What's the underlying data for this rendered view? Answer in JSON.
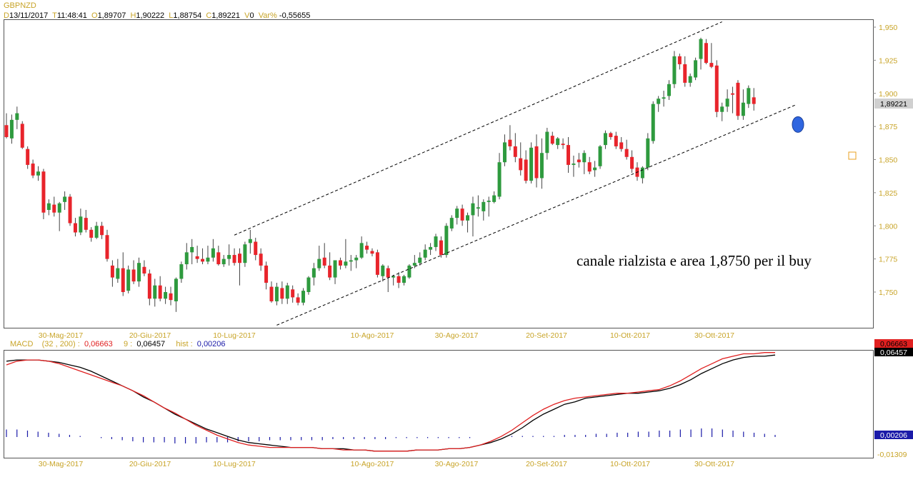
{
  "symbol": "GBPNZD",
  "quote": {
    "d_key": "D",
    "date": "13/11/2017",
    "t_key": "T",
    "time": "11:48:41",
    "o_key": "O",
    "open": "1,89707",
    "h_key": "H",
    "high": "1,90222",
    "l_key": "L",
    "low": "1,88754",
    "c_key": "C",
    "close": "1,89221",
    "v_key": "V",
    "volume": "0",
    "var_key": "Var%",
    "var": "-0,55655"
  },
  "last_price_label": "1,89221",
  "annotation": "canale rialzista e area 1,8750 per il buy",
  "colors": {
    "bull": "#2e9a3e",
    "bear": "#e8242b",
    "axis_text": "#c8a428",
    "macd": "#e02020",
    "signal": "#000000",
    "hist": "#1a1aa8",
    "circle": "#2f66e0",
    "frame": "#555555"
  },
  "x_labels": [
    "30-Mag-2017",
    "20-Giu-2017",
    "10-Lug-2017",
    "10-Ago-2017",
    "30-Ago-2017",
    "20-Set-2017",
    "10-Ott-2017",
    "30-Ott-2017"
  ],
  "macd_legend": {
    "name": "MACD",
    "params": "(32 , 200) :",
    "macd_value": "0,06663",
    "signal_period": "9 :",
    "signal_value": "0,06457",
    "hist_label": "hist :",
    "hist_value": "0,00206"
  },
  "macd_axis": {
    "macd": "0,06663",
    "signal": "0,06457",
    "hist": "0,00206",
    "min": "-0,01309"
  },
  "chart_data": [
    {
      "type": "candlestick",
      "title": "GBPNZD",
      "ylim": [
        1.725,
        1.955
      ],
      "yticks": [
        "1,950",
        "1,925",
        "1,900",
        "1,875",
        "1,850",
        "1,825",
        "1,800",
        "1,775",
        "1,750"
      ],
      "ytick_values": [
        1.95,
        1.925,
        1.9,
        1.875,
        1.85,
        1.825,
        1.8,
        1.775,
        1.75
      ],
      "candles": [
        [
          1.876,
          1.885,
          1.866,
          1.867
        ],
        [
          1.866,
          1.884,
          1.862,
          1.88
        ],
        [
          1.88,
          1.89,
          1.873,
          1.885
        ],
        [
          1.877,
          1.879,
          1.858,
          1.859
        ],
        [
          1.858,
          1.86,
          1.843,
          1.846
        ],
        [
          1.847,
          1.85,
          1.836,
          1.838
        ],
        [
          1.838,
          1.845,
          1.834,
          1.841
        ],
        [
          1.841,
          1.843,
          1.805,
          1.81
        ],
        [
          1.812,
          1.82,
          1.808,
          1.817
        ],
        [
          1.816,
          1.822,
          1.807,
          1.81
        ],
        [
          1.81,
          1.818,
          1.796,
          1.817
        ],
        [
          1.818,
          1.826,
          1.812,
          1.822
        ],
        [
          1.822,
          1.824,
          1.8,
          1.802
        ],
        [
          1.802,
          1.806,
          1.792,
          1.795
        ],
        [
          1.795,
          1.813,
          1.793,
          1.807
        ],
        [
          1.806,
          1.812,
          1.795,
          1.797
        ],
        [
          1.797,
          1.799,
          1.788,
          1.791
        ],
        [
          1.791,
          1.803,
          1.79,
          1.8
        ],
        [
          1.8,
          1.803,
          1.79,
          1.793
        ],
        [
          1.793,
          1.797,
          1.773,
          1.775
        ],
        [
          1.77,
          1.774,
          1.754,
          1.761
        ],
        [
          1.76,
          1.775,
          1.757,
          1.768
        ],
        [
          1.768,
          1.78,
          1.747,
          1.75
        ],
        [
          1.751,
          1.77,
          1.749,
          1.767
        ],
        [
          1.767,
          1.774,
          1.756,
          1.758
        ],
        [
          1.758,
          1.776,
          1.754,
          1.772
        ],
        [
          1.769,
          1.774,
          1.762,
          1.764
        ],
        [
          1.764,
          1.767,
          1.74,
          1.745
        ],
        [
          1.745,
          1.76,
          1.739,
          1.755
        ],
        [
          1.755,
          1.762,
          1.743,
          1.745
        ],
        [
          1.745,
          1.754,
          1.741,
          1.75
        ],
        [
          1.749,
          1.754,
          1.74,
          1.744
        ],
        [
          1.743,
          1.761,
          1.735,
          1.76
        ],
        [
          1.76,
          1.773,
          1.757,
          1.771
        ],
        [
          1.771,
          1.787,
          1.767,
          1.78
        ],
        [
          1.78,
          1.79,
          1.771,
          1.784
        ],
        [
          1.777,
          1.785,
          1.772,
          1.775
        ],
        [
          1.775,
          1.783,
          1.771,
          1.773
        ],
        [
          1.773,
          1.785,
          1.771,
          1.776
        ],
        [
          1.776,
          1.79,
          1.773,
          1.783
        ],
        [
          1.78,
          1.785,
          1.77,
          1.771
        ],
        [
          1.771,
          1.778,
          1.769,
          1.775
        ],
        [
          1.775,
          1.786,
          1.77,
          1.778
        ],
        [
          1.778,
          1.783,
          1.77,
          1.772
        ],
        [
          1.779,
          1.783,
          1.755,
          1.772
        ],
        [
          1.772,
          1.788,
          1.769,
          1.786
        ],
        [
          1.787,
          1.797,
          1.779,
          1.79
        ],
        [
          1.788,
          1.791,
          1.774,
          1.778
        ],
        [
          1.779,
          1.783,
          1.766,
          1.77
        ],
        [
          1.77,
          1.773,
          1.752,
          1.757
        ],
        [
          1.754,
          1.758,
          1.742,
          1.743
        ],
        [
          1.743,
          1.757,
          1.74,
          1.754
        ],
        [
          1.753,
          1.758,
          1.741,
          1.745
        ],
        [
          1.745,
          1.757,
          1.741,
          1.755
        ],
        [
          1.752,
          1.755,
          1.742,
          1.746
        ],
        [
          1.746,
          1.749,
          1.74,
          1.742
        ],
        [
          1.742,
          1.753,
          1.74,
          1.751
        ],
        [
          1.75,
          1.762,
          1.748,
          1.761
        ],
        [
          1.761,
          1.772,
          1.755,
          1.768
        ],
        [
          1.768,
          1.785,
          1.766,
          1.775
        ],
        [
          1.776,
          1.787,
          1.768,
          1.77
        ],
        [
          1.77,
          1.78,
          1.759,
          1.761
        ],
        [
          1.761,
          1.774,
          1.756,
          1.774
        ],
        [
          1.774,
          1.776,
          1.767,
          1.77
        ],
        [
          1.77,
          1.79,
          1.768,
          1.773
        ],
        [
          1.773,
          1.778,
          1.766,
          1.774
        ],
        [
          1.774,
          1.778,
          1.768,
          1.776
        ],
        [
          1.776,
          1.792,
          1.775,
          1.787
        ],
        [
          1.785,
          1.788,
          1.779,
          1.782
        ],
        [
          1.781,
          1.783,
          1.777,
          1.779
        ],
        [
          1.78,
          1.782,
          1.761,
          1.763
        ],
        [
          1.762,
          1.771,
          1.758,
          1.77
        ],
        [
          1.768,
          1.77,
          1.75,
          1.761
        ],
        [
          1.761,
          1.763,
          1.755,
          1.762
        ],
        [
          1.762,
          1.765,
          1.753,
          1.757
        ],
        [
          1.757,
          1.763,
          1.755,
          1.762
        ],
        [
          1.761,
          1.771,
          1.76,
          1.77
        ],
        [
          1.77,
          1.778,
          1.768,
          1.772
        ],
        [
          1.772,
          1.78,
          1.77,
          1.776
        ],
        [
          1.776,
          1.786,
          1.774,
          1.782
        ],
        [
          1.782,
          1.787,
          1.778,
          1.784
        ],
        [
          1.784,
          1.794,
          1.781,
          1.792
        ],
        [
          1.789,
          1.792,
          1.776,
          1.778
        ],
        [
          1.778,
          1.802,
          1.776,
          1.8
        ],
        [
          1.798,
          1.808,
          1.796,
          1.806
        ],
        [
          1.806,
          1.815,
          1.801,
          1.813
        ],
        [
          1.813,
          1.816,
          1.8,
          1.804
        ],
        [
          1.804,
          1.81,
          1.795,
          1.808
        ],
        [
          1.808,
          1.822,
          1.792,
          1.817
        ],
        [
          1.813,
          1.823,
          1.807,
          1.814
        ],
        [
          1.811,
          1.82,
          1.804,
          1.818
        ],
        [
          1.818,
          1.822,
          1.807,
          1.819
        ],
        [
          1.818,
          1.826,
          1.817,
          1.823
        ],
        [
          1.822,
          1.855,
          1.82,
          1.848
        ],
        [
          1.848,
          1.869,
          1.845,
          1.863
        ],
        [
          1.865,
          1.876,
          1.857,
          1.86
        ],
        [
          1.86,
          1.87,
          1.848,
          1.852
        ],
        [
          1.851,
          1.863,
          1.838,
          1.842
        ],
        [
          1.85,
          1.857,
          1.832,
          1.834
        ],
        [
          1.834,
          1.863,
          1.832,
          1.859
        ],
        [
          1.86,
          1.869,
          1.829,
          1.836
        ],
        [
          1.836,
          1.866,
          1.828,
          1.855
        ],
        [
          1.855,
          1.874,
          1.85,
          1.871
        ],
        [
          1.868,
          1.871,
          1.861,
          1.862
        ],
        [
          1.861,
          1.867,
          1.858,
          1.866
        ],
        [
          1.862,
          1.866,
          1.858,
          1.861
        ],
        [
          1.861,
          1.867,
          1.84,
          1.846
        ],
        [
          1.846,
          1.853,
          1.837,
          1.847
        ],
        [
          1.85,
          1.855,
          1.844,
          1.848
        ],
        [
          1.848,
          1.857,
          1.839,
          1.855
        ],
        [
          1.848,
          1.852,
          1.839,
          1.841
        ],
        [
          1.842,
          1.849,
          1.837,
          1.844
        ],
        [
          1.845,
          1.861,
          1.843,
          1.86
        ],
        [
          1.861,
          1.872,
          1.858,
          1.87
        ],
        [
          1.87,
          1.871,
          1.865,
          1.867
        ],
        [
          1.868,
          1.871,
          1.858,
          1.86
        ],
        [
          1.863,
          1.867,
          1.856,
          1.858
        ],
        [
          1.858,
          1.865,
          1.85,
          1.852
        ],
        [
          1.852,
          1.857,
          1.84,
          1.843
        ],
        [
          1.844,
          1.848,
          1.834,
          1.837
        ],
        [
          1.836,
          1.845,
          1.832,
          1.844
        ],
        [
          1.844,
          1.87,
          1.842,
          1.866
        ],
        [
          1.864,
          1.894,
          1.862,
          1.892
        ],
        [
          1.892,
          1.898,
          1.886,
          1.896
        ],
        [
          1.896,
          1.902,
          1.89,
          1.897
        ],
        [
          1.898,
          1.91,
          1.895,
          1.907
        ],
        [
          1.907,
          1.932,
          1.904,
          1.928
        ],
        [
          1.928,
          1.93,
          1.918,
          1.922
        ],
        [
          1.922,
          1.928,
          1.905,
          1.908
        ],
        [
          1.908,
          1.915,
          1.905,
          1.913
        ],
        [
          1.912,
          1.927,
          1.91,
          1.925
        ],
        [
          1.926,
          1.942,
          1.918,
          1.941
        ],
        [
          1.938,
          1.941,
          1.922,
          1.923
        ],
        [
          1.923,
          1.938,
          1.919,
          1.92
        ],
        [
          1.921,
          1.925,
          1.882,
          1.886
        ],
        [
          1.886,
          1.893,
          1.879,
          1.89
        ],
        [
          1.89,
          1.903,
          1.886,
          1.896
        ],
        [
          1.9,
          1.905,
          1.885,
          1.899
        ],
        [
          1.908,
          1.91,
          1.88,
          1.883
        ],
        [
          1.883,
          1.903,
          1.88,
          1.893
        ],
        [
          1.892,
          1.906,
          1.889,
          1.904
        ],
        [
          1.897,
          1.904,
          1.887,
          1.892
        ]
      ],
      "channel": {
        "upper": {
          "from": [
            43,
            1.793
          ],
          "to": [
            135,
            1.954
          ]
        },
        "lower": {
          "from": [
            51,
            1.725
          ],
          "to": [
            149,
            1.8915
          ]
        }
      },
      "marker_level": 1.8765,
      "annotation": "canale rialzista e area 1,8750 per il buy"
    },
    {
      "type": "line",
      "title": "MACD",
      "series": [
        {
          "name": "MACD",
          "values": [
            0.057,
            0.06,
            0.061,
            0.061,
            0.06,
            0.058,
            0.055,
            0.052,
            0.049,
            0.046,
            0.043,
            0.04,
            0.036,
            0.032,
            0.027,
            0.022,
            0.018,
            0.013,
            0.008,
            0.004,
            0.0,
            -0.003,
            -0.006,
            -0.008,
            -0.009,
            -0.01,
            -0.01,
            -0.01,
            -0.01,
            -0.01,
            -0.011,
            -0.011,
            -0.012,
            -0.012,
            -0.012,
            -0.013,
            -0.013,
            -0.013,
            -0.013,
            -0.012,
            -0.012,
            -0.012,
            -0.011,
            -0.011,
            -0.01,
            -0.008,
            -0.005,
            -0.001,
            0.004,
            0.01,
            0.016,
            0.021,
            0.025,
            0.028,
            0.03,
            0.031,
            0.032,
            0.033,
            0.034,
            0.034,
            0.035,
            0.036,
            0.037,
            0.04,
            0.044,
            0.049,
            0.054,
            0.058,
            0.062,
            0.064,
            0.066,
            0.066,
            0.067,
            0.067
          ]
        },
        {
          "name": "9",
          "values": [
            0.06,
            0.061,
            0.061,
            0.061,
            0.06,
            0.059,
            0.057,
            0.055,
            0.052,
            0.048,
            0.044,
            0.04,
            0.036,
            0.031,
            0.027,
            0.022,
            0.017,
            0.013,
            0.009,
            0.005,
            0.002,
            -0.001,
            -0.004,
            -0.006,
            -0.007,
            -0.008,
            -0.009,
            -0.01,
            -0.01,
            -0.01,
            -0.011,
            -0.011,
            -0.011,
            -0.012,
            -0.012,
            -0.013,
            -0.013,
            -0.013,
            -0.013,
            -0.012,
            -0.012,
            -0.012,
            -0.011,
            -0.011,
            -0.01,
            -0.008,
            -0.006,
            -0.003,
            0.001,
            0.006,
            0.012,
            0.017,
            0.021,
            0.025,
            0.027,
            0.03,
            0.031,
            0.032,
            0.033,
            0.034,
            0.034,
            0.035,
            0.036,
            0.038,
            0.041,
            0.045,
            0.05,
            0.054,
            0.058,
            0.061,
            0.063,
            0.064,
            0.064,
            0.065
          ]
        },
        {
          "name": "hist",
          "values": [
            0.007,
            0.007,
            0.006,
            0.005,
            0.004,
            0.003,
            0.002,
            0.001,
            0.0,
            -0.001,
            -0.002,
            -0.003,
            -0.004,
            -0.005,
            -0.005,
            -0.005,
            -0.006,
            -0.006,
            -0.006,
            -0.005,
            -0.005,
            -0.005,
            -0.004,
            -0.004,
            -0.004,
            -0.003,
            -0.003,
            -0.003,
            -0.003,
            -0.003,
            -0.003,
            -0.002,
            -0.002,
            -0.002,
            -0.002,
            -0.002,
            -0.002,
            -0.001,
            -0.001,
            -0.001,
            -0.001,
            -0.001,
            -0.001,
            -0.001,
            -0.001,
            0.0,
            0.0,
            0.0,
            0.001,
            0.001,
            0.001,
            0.001,
            0.001,
            0.002,
            0.002,
            0.002,
            0.003,
            0.003,
            0.004,
            0.004,
            0.005,
            0.005,
            0.006,
            0.006,
            0.007,
            0.007,
            0.008,
            0.008,
            0.007,
            0.006,
            0.005,
            0.004,
            0.003,
            0.002
          ]
        }
      ],
      "ylim": [
        -0.016,
        0.068
      ]
    }
  ]
}
